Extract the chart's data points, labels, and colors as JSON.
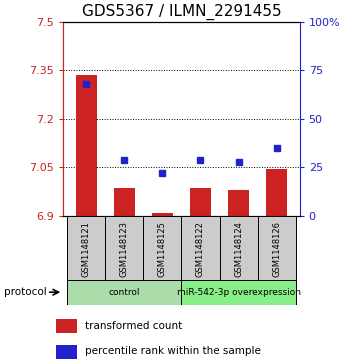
{
  "title": "GDS5367 / ILMN_2291455",
  "samples": [
    "GSM1148121",
    "GSM1148123",
    "GSM1148125",
    "GSM1148122",
    "GSM1148124",
    "GSM1148126"
  ],
  "red_values": [
    7.335,
    6.985,
    6.91,
    6.985,
    6.98,
    7.045
  ],
  "blue_values": [
    68,
    29,
    22,
    29,
    28,
    35
  ],
  "ymin": 6.9,
  "ymax": 7.5,
  "yticks": [
    6.9,
    7.05,
    7.2,
    7.35,
    7.5
  ],
  "ytick_labels": [
    "6.9",
    "7.05",
    "7.2",
    "7.35",
    "7.5"
  ],
  "right_yticks": [
    0,
    25,
    50,
    75,
    100
  ],
  "right_ytick_labels": [
    "0",
    "25",
    "50",
    "75",
    "100%"
  ],
  "bar_base": 6.9,
  "dotted_lines": [
    7.05,
    7.2,
    7.35
  ],
  "bar_color": "#cc2222",
  "dot_color": "#2222cc",
  "bar_width": 0.55,
  "title_fontsize": 11,
  "tick_fontsize": 8,
  "legend_fontsize": 7.5,
  "protocol_label": "protocol",
  "sample_bg": "#cccccc",
  "group_info": [
    {
      "label": "control",
      "start": 0,
      "end": 3,
      "color": "#aaddaa"
    },
    {
      "label": "miR-542-3p overexpression",
      "start": 3,
      "end": 6,
      "color": "#88ee88"
    }
  ]
}
